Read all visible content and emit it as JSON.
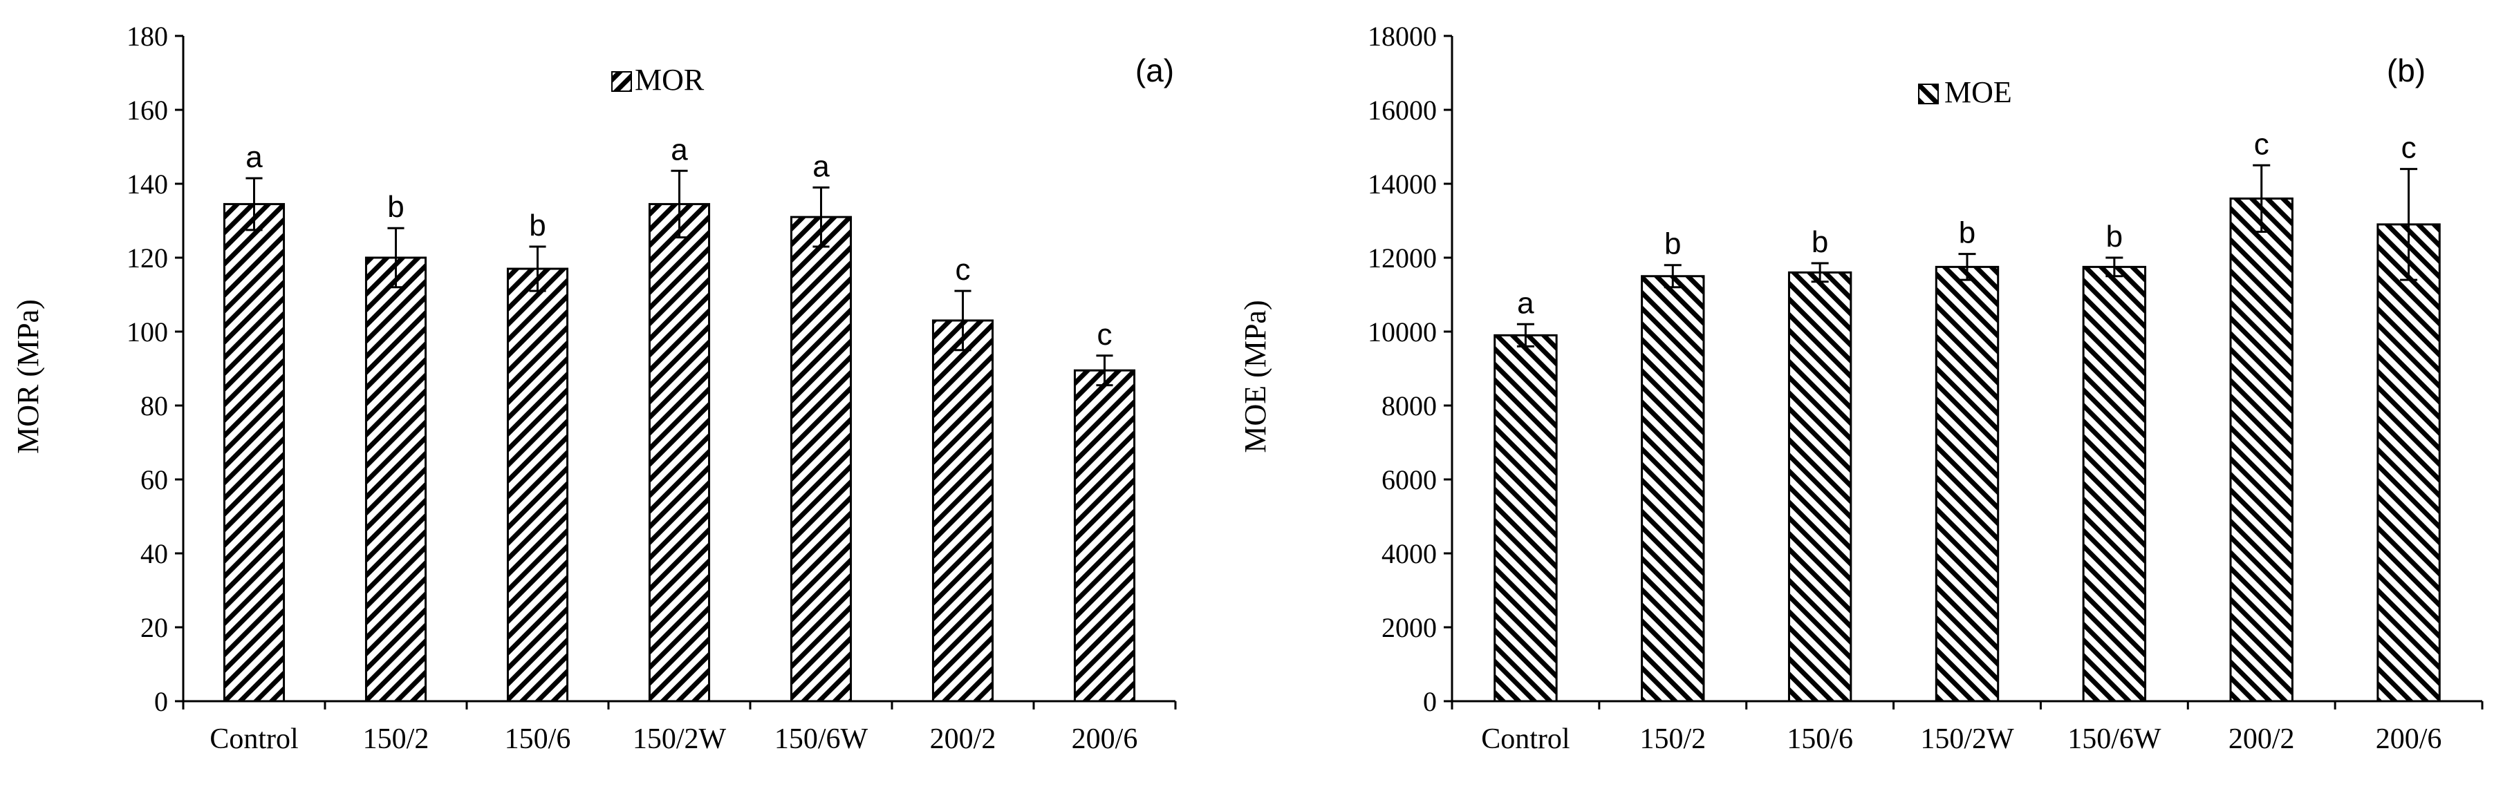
{
  "chart_data": [
    {
      "type": "bar",
      "panel_label": "(a)",
      "categories": [
        "Control",
        "150/2",
        "150/6",
        "150/2W",
        "150/6W",
        "200/2",
        "200/6"
      ],
      "series": [
        {
          "name": "MOR",
          "values": [
            134.5,
            120,
            117,
            134.5,
            131,
            103,
            89.5
          ],
          "errors": [
            7,
            8,
            6,
            9,
            8,
            8,
            4
          ],
          "significance": [
            "a",
            "b",
            "b",
            "a",
            "a",
            "c",
            "c"
          ]
        }
      ],
      "ylabel": "MOR (MPa)",
      "xlabel": "",
      "ylim": [
        0,
        180
      ],
      "yticks": [
        0,
        20,
        40,
        60,
        80,
        100,
        120,
        140,
        160,
        180
      ],
      "legend_position": "top-center",
      "hatch": "forward"
    },
    {
      "type": "bar",
      "panel_label": "(b)",
      "categories": [
        "Control",
        "150/2",
        "150/6",
        "150/2W",
        "150/6W",
        "200/2",
        "200/6"
      ],
      "series": [
        {
          "name": "MOE",
          "values": [
            9900,
            11500,
            11600,
            11750,
            11750,
            13600,
            12900
          ],
          "errors": [
            300,
            300,
            250,
            350,
            250,
            900,
            1500
          ],
          "significance": [
            "a",
            "b",
            "b",
            "b",
            "b",
            "c",
            "c"
          ]
        }
      ],
      "ylabel": "MOE (MPa)",
      "xlabel": "",
      "ylim": [
        0,
        18000
      ],
      "yticks": [
        0,
        2000,
        4000,
        6000,
        8000,
        10000,
        12000,
        14000,
        16000,
        18000
      ],
      "legend_position": "top-center",
      "hatch": "backward"
    }
  ]
}
